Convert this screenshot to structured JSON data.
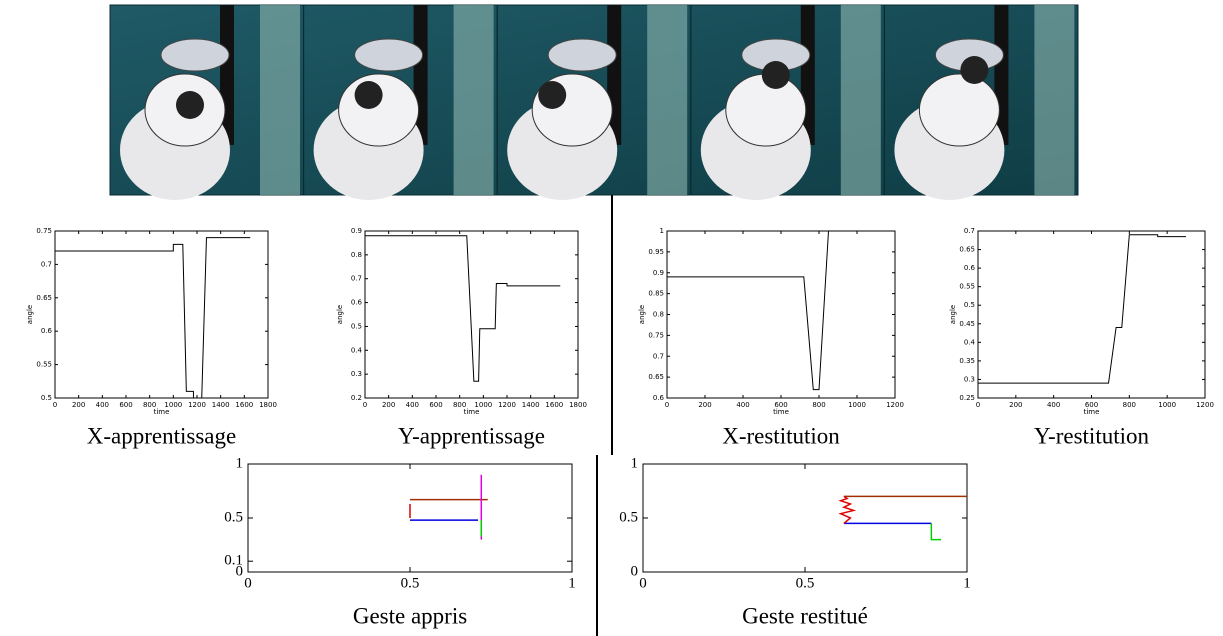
{
  "chart_data": [
    {
      "type": "line",
      "caption": "X-apprentissage",
      "xlabel": "time",
      "ylabel": "angle",
      "xlim": [
        0,
        1800
      ],
      "xticks": [
        0,
        200,
        400,
        600,
        800,
        1000,
        1200,
        1400,
        1600,
        1800
      ],
      "ylim": [
        0.5,
        0.75
      ],
      "yticks": [
        0.5,
        0.55,
        0.6,
        0.65,
        0.7,
        0.75
      ],
      "series": [
        {
          "color": "#000000",
          "x": [
            0,
            1000,
            1000,
            1080,
            1110,
            1170,
            1170,
            1240,
            1280,
            1650
          ],
          "values": [
            0.72,
            0.72,
            0.73,
            0.73,
            0.51,
            0.51,
            0.5,
            0.5,
            0.74,
            0.74
          ]
        }
      ]
    },
    {
      "type": "line",
      "caption": "Y-apprentissage",
      "xlabel": "time",
      "ylabel": "angle",
      "xlim": [
        0,
        1800
      ],
      "xticks": [
        0,
        200,
        400,
        600,
        800,
        1000,
        1200,
        1400,
        1600,
        1800
      ],
      "ylim": [
        0.2,
        0.9
      ],
      "yticks": [
        0.2,
        0.3,
        0.4,
        0.5,
        0.6,
        0.7,
        0.8,
        0.9
      ],
      "series": [
        {
          "color": "#000000",
          "x": [
            0,
            860,
            920,
            960,
            970,
            1100,
            1110,
            1200,
            1200,
            1650
          ],
          "values": [
            0.88,
            0.88,
            0.27,
            0.27,
            0.49,
            0.49,
            0.68,
            0.68,
            0.67,
            0.67
          ]
        }
      ]
    },
    {
      "type": "line",
      "caption": "X-restitution",
      "xlabel": "time",
      "ylabel": "angle",
      "xlim": [
        0,
        1200
      ],
      "xticks": [
        0,
        200,
        400,
        600,
        800,
        1000,
        1200
      ],
      "ylim": [
        0.6,
        1
      ],
      "yticks": [
        0.6,
        0.65,
        0.7,
        0.75,
        0.8,
        0.85,
        0.9,
        0.95,
        1
      ],
      "series": [
        {
          "color": "#000000",
          "x": [
            0,
            720,
            770,
            800,
            850,
            1100
          ],
          "values": [
            0.89,
            0.89,
            0.62,
            0.62,
            1,
            1
          ]
        }
      ]
    },
    {
      "type": "line",
      "caption": "Y-restitution",
      "xlabel": "time",
      "ylabel": "angle",
      "xlim": [
        0,
        1200
      ],
      "xticks": [
        0,
        200,
        400,
        600,
        800,
        1000,
        1200
      ],
      "ylim": [
        0.25,
        0.7
      ],
      "yticks": [
        0.25,
        0.3,
        0.35,
        0.4,
        0.45,
        0.5,
        0.55,
        0.6,
        0.65,
        0.7
      ],
      "series": [
        {
          "color": "#000000",
          "x": [
            0,
            690,
            730,
            760,
            800,
            950,
            950,
            1100
          ],
          "values": [
            0.29,
            0.29,
            0.44,
            0.44,
            0.69,
            0.69,
            0.685,
            0.685
          ]
        }
      ]
    },
    {
      "type": "line",
      "caption": "Geste appris",
      "xlim": [
        0,
        1
      ],
      "xticks": [
        0,
        0.5,
        1
      ],
      "ylim": [
        0,
        1
      ],
      "yticks": [
        0,
        0.1,
        0.5,
        1
      ],
      "series": [
        {
          "color": "#e00000",
          "x": [
            0.5,
            0.5
          ],
          "values": [
            0.5,
            0.63
          ]
        },
        {
          "color": "#a03000",
          "x": [
            0.5,
            0.74
          ],
          "values": [
            0.67,
            0.67
          ]
        },
        {
          "color": "#0000e0",
          "x": [
            0.5,
            0.71
          ],
          "values": [
            0.48,
            0.48
          ]
        },
        {
          "color": "#e000e0",
          "x": [
            0.72,
            0.72
          ],
          "values": [
            0.3,
            0.9
          ]
        },
        {
          "color": "#00d000",
          "x": [
            0.72,
            0.72
          ],
          "values": [
            0.48,
            0.33
          ]
        }
      ]
    },
    {
      "type": "line",
      "caption": "Geste restitué",
      "xlim": [
        0,
        1
      ],
      "xticks": [
        0,
        0.5,
        1
      ],
      "ylim": [
        0,
        1
      ],
      "yticks": [
        0,
        0.5,
        1
      ],
      "series": [
        {
          "color": "#a03000",
          "x": [
            0.62,
            1
          ],
          "values": [
            0.7,
            0.7
          ]
        },
        {
          "color": "#0000e0",
          "x": [
            0.62,
            0.89
          ],
          "values": [
            0.45,
            0.45
          ]
        },
        {
          "color": "#e00000",
          "x": [
            0.62,
            0.64,
            0.61,
            0.65,
            0.62,
            0.64,
            0.61,
            0.63,
            0.62
          ],
          "values": [
            0.45,
            0.5,
            0.54,
            0.57,
            0.6,
            0.63,
            0.66,
            0.68,
            0.7
          ]
        },
        {
          "color": "#00d000",
          "x": [
            0.89,
            0.89,
            0.92
          ],
          "values": [
            0.45,
            0.3,
            0.3
          ]
        }
      ]
    }
  ]
}
